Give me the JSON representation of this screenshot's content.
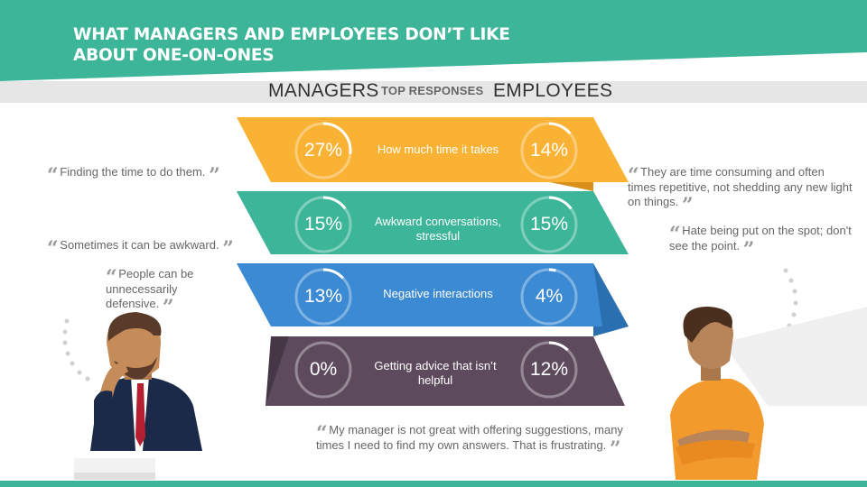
{
  "title": "WHAT MANAGERS AND EMPLOYEES DON’T LIKE ABOUT ONE-ON-ONES",
  "columns": {
    "left": "MANAGERS",
    "center": "TOP RESPONSES",
    "right": "EMPLOYEES"
  },
  "colors": {
    "header": "#3db598",
    "subbar": "#e6e6e6",
    "text": "#333333",
    "quote": "#666666"
  },
  "responses": [
    {
      "label": "How much time it takes",
      "managers": "27%",
      "employees": "14%",
      "managers_value": 27,
      "employees_value": 14,
      "color": "#f9b233",
      "dark": "#d8901a"
    },
    {
      "label": "Awkward conversations, stressful",
      "managers": "15%",
      "employees": "15%",
      "managers_value": 15,
      "employees_value": 15,
      "color": "#3db598",
      "dark": "#2a9377"
    },
    {
      "label": "Negative interactions",
      "managers": "13%",
      "employees": "4%",
      "managers_value": 13,
      "employees_value": 4,
      "color": "#3c8ad3",
      "dark": "#2a6fb0"
    },
    {
      "label": "Getting advice that isn’t helpful",
      "managers": "0%",
      "employees": "12%",
      "managers_value": 0,
      "employees_value": 12,
      "color": "#5d4b5d",
      "dark": "#463746"
    }
  ],
  "quotes": {
    "manager": [
      "Finding the time to do them.",
      "Sometimes it can be awkward.",
      "People can be unnecessarily defensive."
    ],
    "employee": [
      "They are time consuming and often times repetitive, not shedding any new light on things.",
      "Hate being put on the spot; don't see the point.",
      "My manager is not great with offering suggestions, many times I need to find my own answers. That is frustrating."
    ]
  }
}
